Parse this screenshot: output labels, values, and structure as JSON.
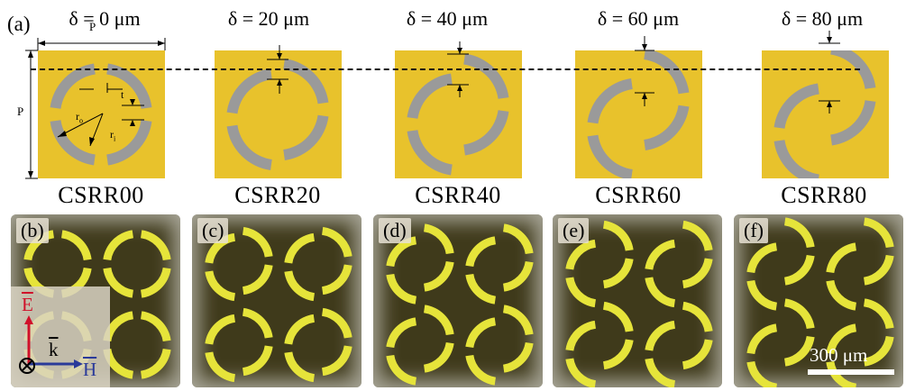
{
  "figure": {
    "panel_a_label": "(a)",
    "designs": [
      {
        "delta": "δ = 0 μm",
        "name": "CSRR00",
        "color": "#111111",
        "offset": 0
      },
      {
        "delta": "δ = 20 μm",
        "name": "CSRR20",
        "color": "#6b2c8a",
        "offset": 20
      },
      {
        "delta": "δ = 40 μm",
        "name": "CSRR40",
        "color": "#2a2a7a",
        "offset": 40
      },
      {
        "delta": "δ = 60 μm",
        "name": "CSRR60",
        "color": "#2e9a44",
        "offset": 60
      },
      {
        "delta": "δ = 80 μm",
        "name": "CSRR80",
        "color": "#d0102a",
        "offset": 80
      }
    ],
    "dimension_labels": {
      "period": "P",
      "width": "t",
      "outer_radius": "r",
      "outer_sub": "o",
      "inner_radius": "r",
      "inner_sub": "i"
    },
    "photos": [
      {
        "label": "(b)"
      },
      {
        "label": "(c)"
      },
      {
        "label": "(d)"
      },
      {
        "label": "(e)"
      },
      {
        "label": "(f)"
      }
    ],
    "axes_labels": {
      "E": "E",
      "k": "k",
      "H": "H"
    },
    "scale_bar": "300 μm",
    "colors": {
      "substrate": "#e8c22c",
      "ring": "#9a9a9a",
      "photo_bg": "#3f3a1b",
      "photo_ring": "#e6e43a",
      "E": "#d0102a",
      "H": "#2a3a9a"
    }
  }
}
